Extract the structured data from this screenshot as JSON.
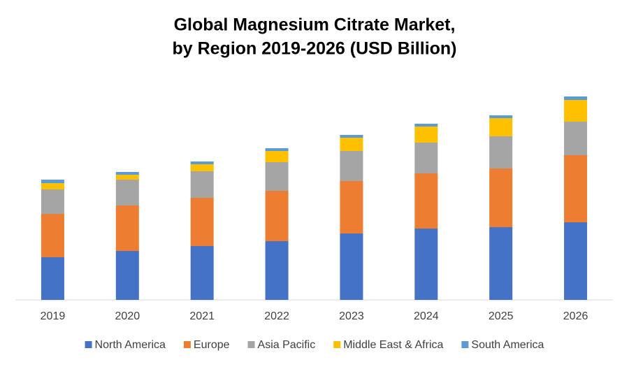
{
  "chart_data": {
    "type": "stacked_bar",
    "title": [
      "Global Magnesium Citrate Market,",
      "by Region 2019-2026 (USD Billion)"
    ],
    "categories": [
      "2019",
      "2020",
      "2021",
      "2022",
      "2023",
      "2024",
      "2025",
      "2026"
    ],
    "series": [
      {
        "name": "North America",
        "color": "#4472c4",
        "values": [
          61,
          70,
          77,
          84,
          95,
          102,
          104,
          111
        ]
      },
      {
        "name": "Europe",
        "color": "#ed7d31",
        "values": [
          62,
          65,
          69,
          72,
          75,
          79,
          84,
          96
        ]
      },
      {
        "name": "Asia Pacific",
        "color": "#a5a5a5",
        "values": [
          35,
          37,
          38,
          41,
          43,
          44,
          46,
          48
        ]
      },
      {
        "name": "Middle East & Africa",
        "color": "#ffc000",
        "values": [
          9,
          7,
          10,
          16,
          19,
          23,
          26,
          31
        ]
      },
      {
        "name": "South America",
        "color": "#5b9bd5",
        "values": [
          5,
          4,
          4,
          4,
          4,
          4,
          4,
          5
        ]
      }
    ],
    "ylim": [
      0,
      300
    ],
    "legend": "bottom"
  }
}
